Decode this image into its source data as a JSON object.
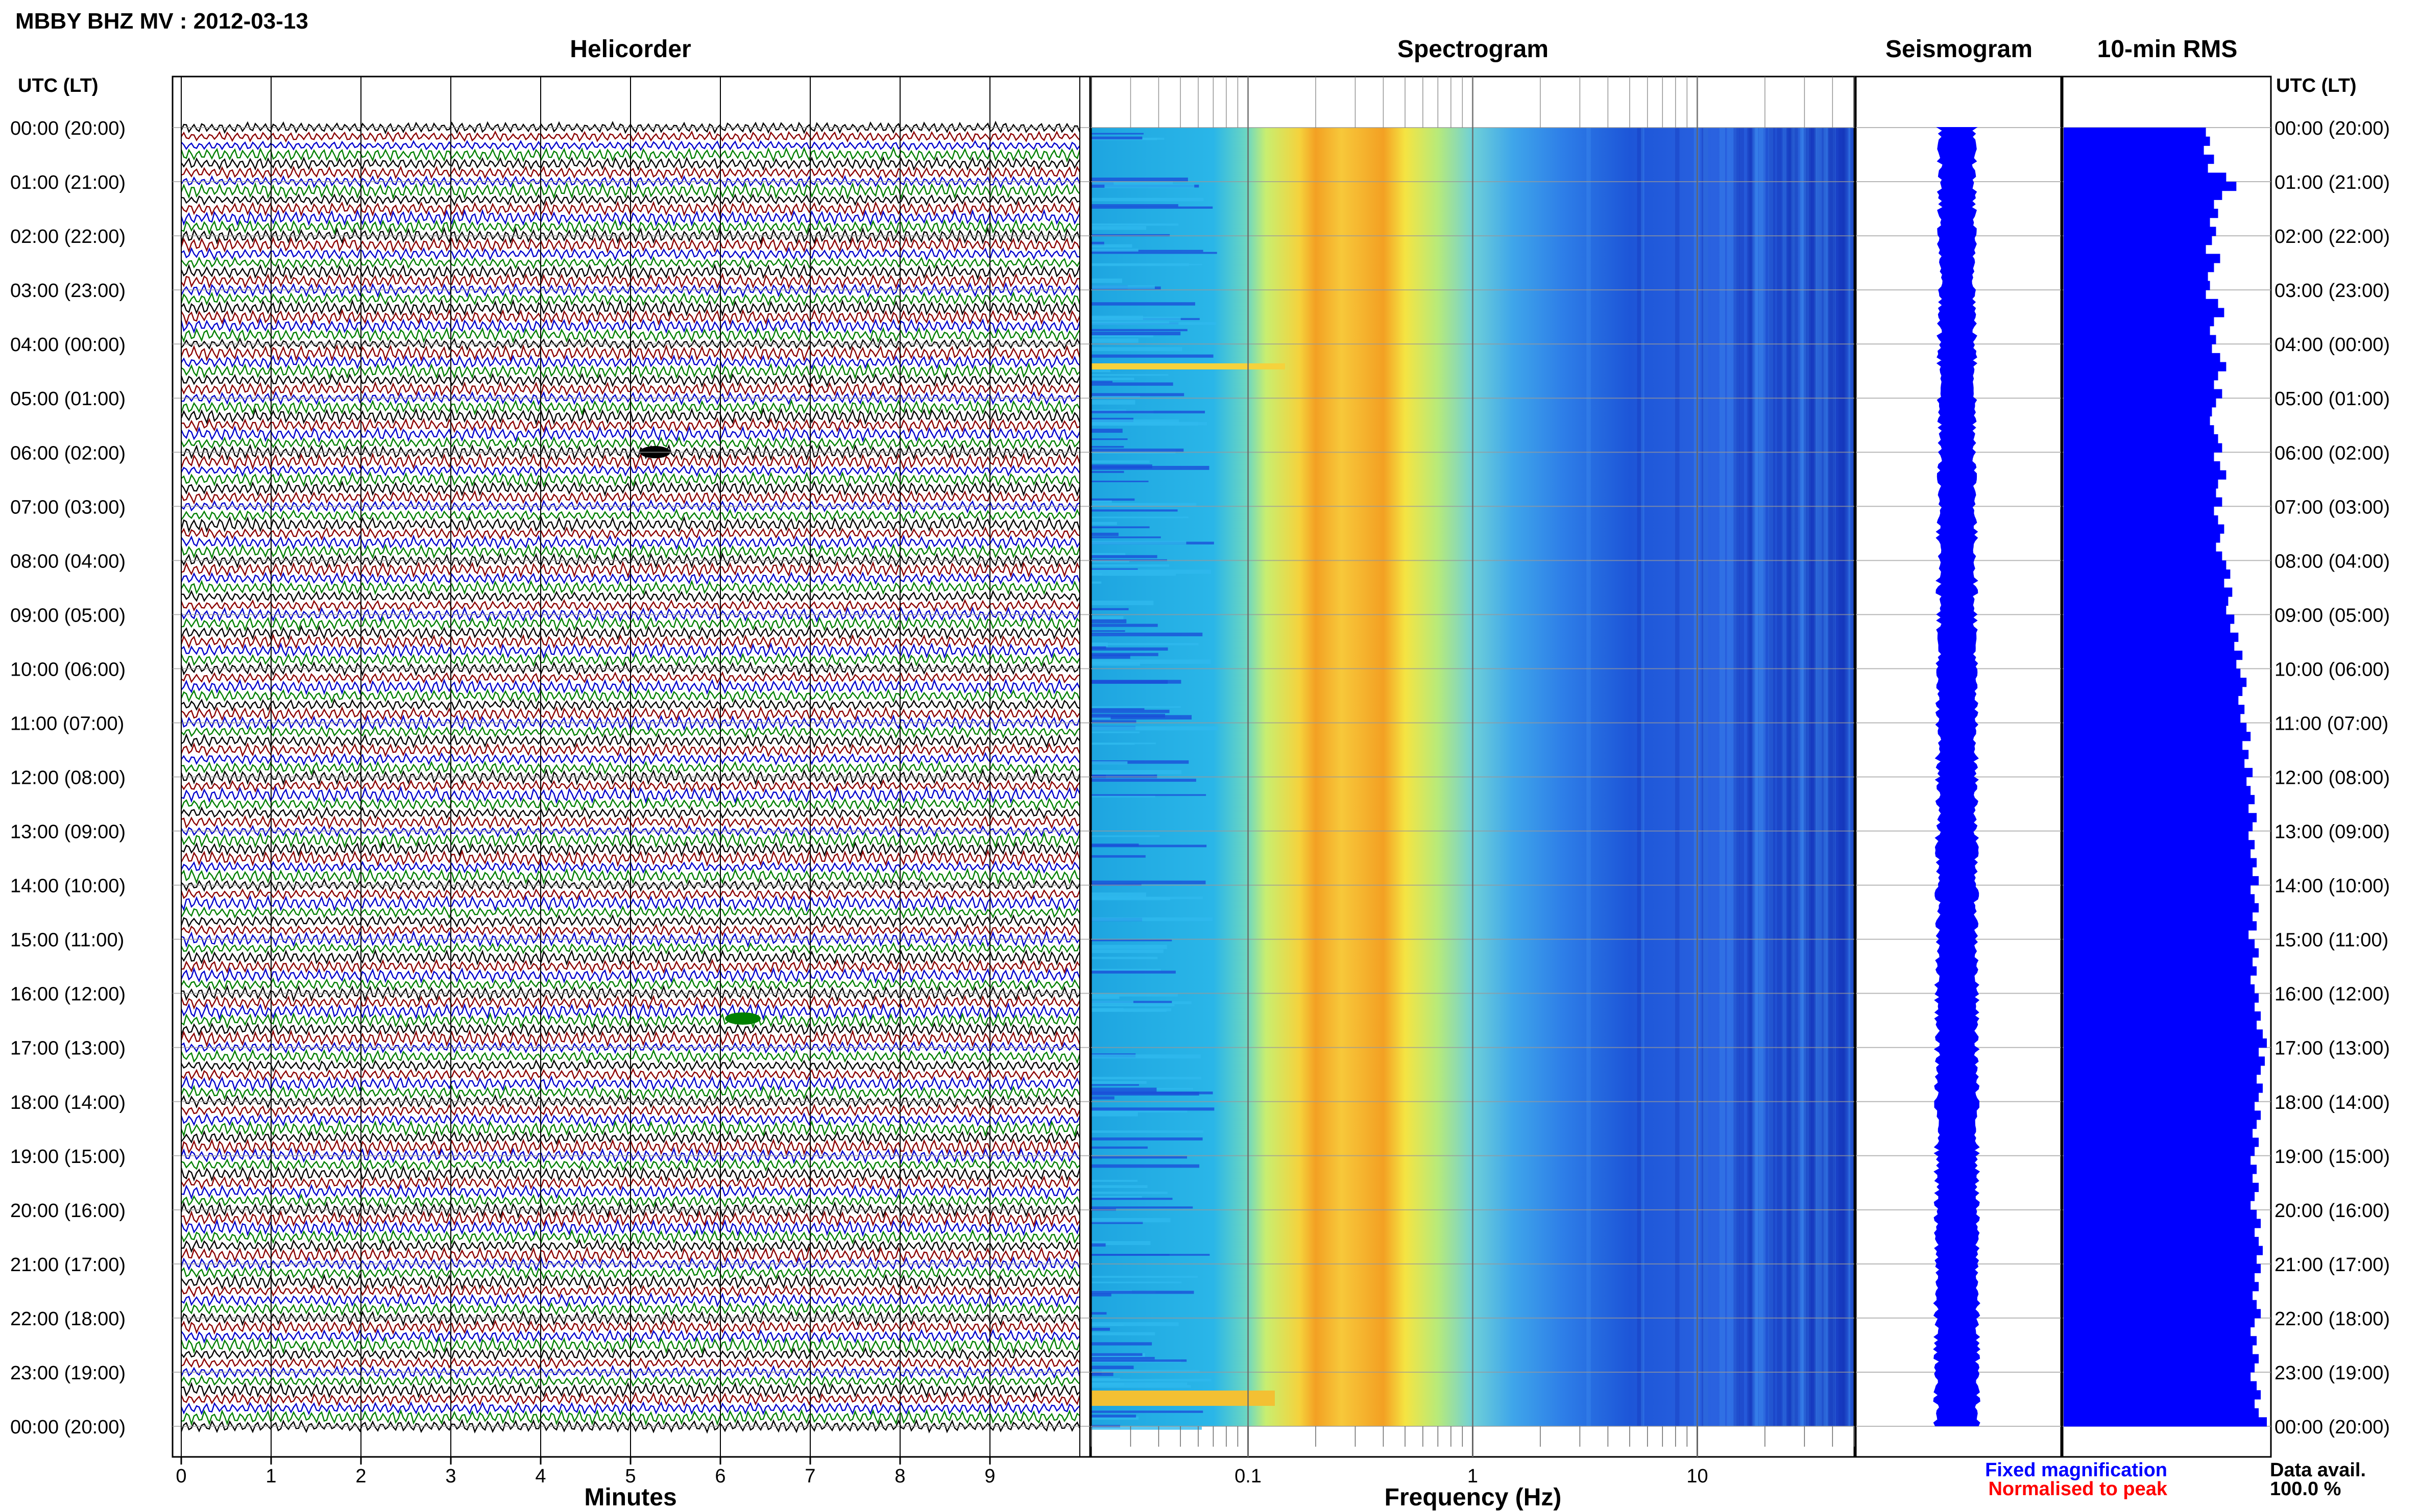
{
  "header": {
    "title": "MBBY BHZ MV : 2012-03-13",
    "utc_label": "UTC (LT)",
    "utc_label_right": "UTC (LT)"
  },
  "panels": {
    "helicorder": "Helicorder",
    "spectrogram": "Spectrogram",
    "seismogram": "Seismogram",
    "rms": "10-min RMS"
  },
  "time_labels": [
    "00:00 (20:00)",
    "01:00 (21:00)",
    "02:00 (22:00)",
    "03:00 (23:00)",
    "04:00 (00:00)",
    "05:00 (01:00)",
    "06:00 (02:00)",
    "07:00 (03:00)",
    "08:00 (04:00)",
    "09:00 (05:00)",
    "10:00 (06:00)",
    "11:00 (07:00)",
    "12:00 (08:00)",
    "13:00 (09:00)",
    "14:00 (10:00)",
    "15:00 (11:00)",
    "16:00 (12:00)",
    "17:00 (13:00)",
    "18:00 (14:00)",
    "19:00 (15:00)",
    "20:00 (16:00)",
    "21:00 (17:00)",
    "22:00 (18:00)",
    "23:00 (19:00)",
    "00:00 (20:00)"
  ],
  "footer": {
    "minutes_label": "Minutes",
    "frequency_label": "Frequency (Hz)",
    "fixed_mag": "Fixed magnification",
    "normalised": "Normalised to peak",
    "data_avail_label": "Data avail.",
    "data_avail_value": "100.0 %"
  },
  "colors": {
    "fixed_mag": "#0000ff",
    "normalised": "#ff0000",
    "trace_colors": [
      "#000000",
      "#8b0000",
      "#0000cd",
      "#008000"
    ],
    "rms_bar": "#0000ff"
  },
  "chart_data": [
    {
      "type": "line",
      "name": "helicorder",
      "title": "Helicorder",
      "xlabel": "Minutes",
      "xlim": [
        0,
        10
      ],
      "xticks": [
        0,
        1,
        2,
        3,
        4,
        5,
        6,
        7,
        8,
        9
      ],
      "rows": 144,
      "ylabel": "UTC (LT)"
    },
    {
      "type": "heatmap",
      "name": "spectrogram",
      "title": "Spectrogram",
      "xlabel": "Frequency (Hz)",
      "xscale": "log",
      "xlim": [
        0.02,
        50
      ],
      "xticks": [
        0.1,
        1,
        10
      ],
      "xtick_labels": [
        "0.1",
        "1",
        "10"
      ],
      "peak_frequency_hz": [
        0.2,
        0.4
      ]
    },
    {
      "type": "line",
      "name": "seismogram",
      "title": "Seismogram"
    },
    {
      "type": "bar",
      "name": "rms",
      "title": "10-min RMS",
      "orientation": "horizontal",
      "interval_minutes": 10,
      "values": [
        0.7,
        0.72,
        0.69,
        0.74,
        0.71,
        0.8,
        0.85,
        0.78,
        0.74,
        0.76,
        0.72,
        0.75,
        0.73,
        0.7,
        0.77,
        0.74,
        0.71,
        0.72,
        0.7,
        0.76,
        0.79,
        0.74,
        0.72,
        0.75,
        0.73,
        0.77,
        0.8,
        0.76,
        0.74,
        0.78,
        0.75,
        0.73,
        0.72,
        0.74,
        0.76,
        0.78,
        0.74,
        0.77,
        0.8,
        0.76,
        0.75,
        0.78,
        0.74,
        0.76,
        0.79,
        0.77,
        0.75,
        0.78,
        0.8,
        0.82,
        0.79,
        0.83,
        0.81,
        0.8,
        0.84,
        0.82,
        0.86,
        0.84,
        0.88,
        0.85,
        0.87,
        0.9,
        0.88,
        0.86,
        0.89,
        0.87,
        0.9,
        0.92,
        0.88,
        0.91,
        0.89,
        0.93,
        0.9,
        0.92,
        0.94,
        0.91,
        0.95,
        0.93,
        0.91,
        0.94,
        0.92,
        0.95,
        0.93,
        0.96,
        0.92,
        0.94,
        0.96,
        0.93,
        0.95,
        0.91,
        0.94,
        0.96,
        0.93,
        0.95,
        0.92,
        0.94,
        0.96,
        0.94,
        0.97,
        0.95,
        0.98,
        1.0,
        0.96,
        0.99,
        0.97,
        0.95,
        0.98,
        0.96,
        0.94,
        0.97,
        0.95,
        0.93,
        0.96,
        0.94,
        0.92,
        0.95,
        0.93,
        0.96,
        0.94,
        0.92,
        0.95,
        0.97,
        0.94,
        0.96,
        0.98,
        0.95,
        0.97,
        0.94,
        0.96,
        0.93,
        0.95,
        0.97,
        0.94,
        0.92,
        0.95,
        0.93,
        0.96,
        0.94,
        0.92,
        0.95,
        0.97,
        0.94,
        0.96,
        1.0
      ]
    }
  ]
}
